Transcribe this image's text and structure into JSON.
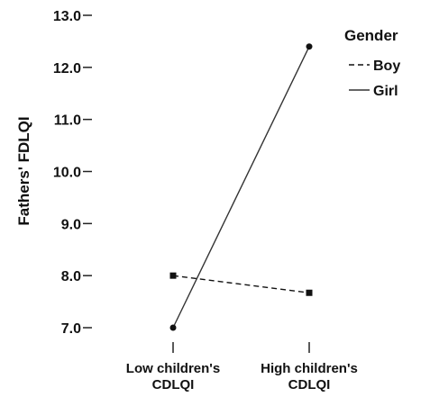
{
  "chart_data": {
    "type": "line",
    "ylabel": "Fathers' FDLQI",
    "xlabel": "",
    "categories": [
      [
        "Low children's",
        "CDLQI"
      ],
      [
        "High children's",
        "CDLQI"
      ]
    ],
    "ylim": [
      7.0,
      13.0
    ],
    "yticks": [
      "7.0",
      "8.0",
      "9.0",
      "10.0",
      "11.0",
      "12.0",
      "13.0"
    ],
    "legend": {
      "title": "Gender",
      "position": "top-right"
    },
    "series": [
      {
        "name": "Boy",
        "values": [
          8.0,
          7.67
        ],
        "line": "dashed",
        "marker": "square",
        "color": "#111111"
      },
      {
        "name": "Girl",
        "values": [
          7.0,
          12.4
        ],
        "line": "solid",
        "marker": "circle",
        "color": "#333333"
      }
    ],
    "grid": false
  }
}
